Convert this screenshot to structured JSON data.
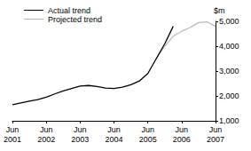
{
  "chart_data": {
    "type": "line",
    "y_label": "$m",
    "categories": [
      "Jun\n2001",
      null,
      null,
      null,
      "Jun\n2002",
      null,
      null,
      null,
      "Jun\n2003",
      null,
      null,
      null,
      "Jun\n2004",
      null,
      null,
      null,
      "Jun\n2005",
      null,
      null,
      null,
      "Jun\n2006",
      null,
      null,
      null,
      "Jun\n2007"
    ],
    "series": [
      {
        "name": "Projected trend",
        "color": "#bbbbbb",
        "line_style": "solid",
        "values": [
          null,
          null,
          null,
          null,
          null,
          null,
          null,
          null,
          null,
          null,
          null,
          null,
          null,
          null,
          null,
          null,
          null,
          3500,
          4000,
          4400,
          4600,
          4750,
          4950,
          4980,
          4800
        ]
      },
      {
        "name": "Actual trend",
        "color": "#000000",
        "line_style": "solid",
        "values": [
          1650,
          1720,
          1790,
          1850,
          1950,
          2080,
          2200,
          2300,
          2400,
          2420,
          2380,
          2320,
          2300,
          2350,
          2450,
          2600,
          2900,
          3500,
          4100,
          4800,
          null,
          null,
          null,
          null,
          null
        ]
      }
    ],
    "ylim": [
      1000,
      5000
    ],
    "yticks": [
      1000,
      2000,
      3000,
      4000,
      5000
    ],
    "grid": false,
    "legend": "top-left"
  }
}
